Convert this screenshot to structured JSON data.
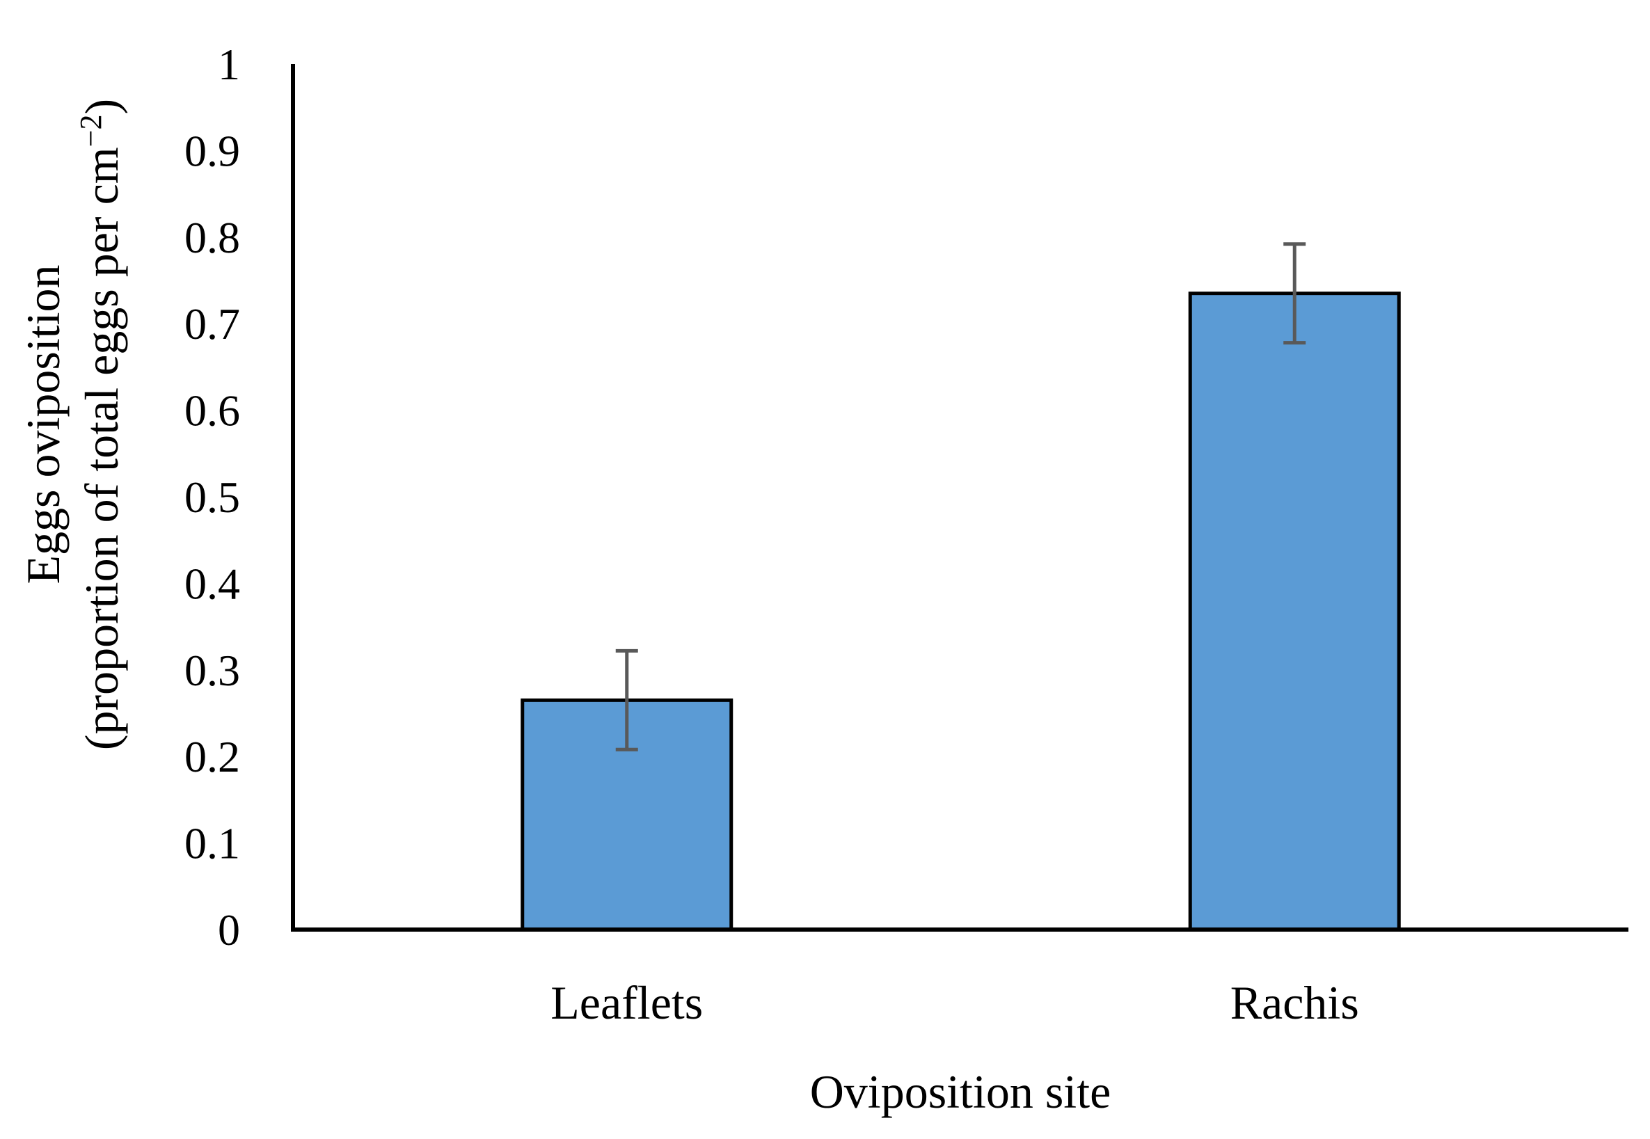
{
  "chart_data": {
    "type": "bar",
    "title": "",
    "xlabel": "Oviposition site",
    "ylabel_line1": "Eggs oviposition",
    "ylabel_line2_main": "(proportion of total eggs per cm",
    "ylabel_line2_sup": "−2",
    "ylabel_line2_end": ")",
    "categories": [
      "Leaflets",
      "Rachis"
    ],
    "values": [
      0.265,
      0.735
    ],
    "error": [
      0.057,
      0.057
    ],
    "ylim": [
      0,
      1
    ],
    "yticks": [
      "0",
      "0.1",
      "0.2",
      "0.3",
      "0.4",
      "0.5",
      "0.6",
      "0.7",
      "0.8",
      "0.9",
      "1"
    ],
    "bar_color": "#5b9bd5",
    "bar_edge_color": "#000000",
    "error_color": "#595959",
    "grid": false,
    "legend": "none"
  }
}
